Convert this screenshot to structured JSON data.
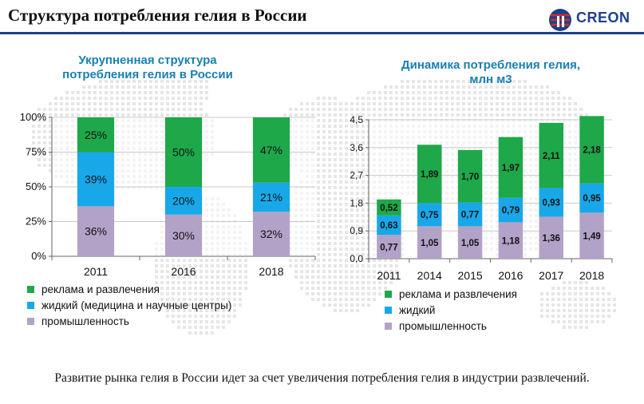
{
  "header": {
    "title": "Структура потребления гелия в России",
    "logo_text": "CREON"
  },
  "colors": {
    "green": "#1ea84a",
    "blue": "#18a8ea",
    "purple": "#b3a2c8",
    "title_blue": "#1a7fb0",
    "rule": "#1e3f8a"
  },
  "footer": {
    "text": "Развитие рынка гелия в России идет за счет увеличения потребления гелия в индустрии развлечений."
  },
  "left_chart": {
    "title_line1": "Укрупненная структура",
    "title_line2": "потребления гелия в России",
    "legend": [
      "реклама  и развлечения",
      "жидкий (медицина  и научные центры)",
      "промышленность"
    ]
  },
  "right_chart": {
    "title_line1": "Динамика потребления гелия,",
    "title_line2": "млн м3",
    "legend": [
      "реклама  и развлечения",
      "жидкий",
      "промышленность"
    ]
  },
  "chart_data": [
    {
      "type": "bar",
      "stacked": "percent",
      "title": "Укрупненная структура потребления гелия в России",
      "categories": [
        "2011",
        "2016",
        "2018"
      ],
      "series": [
        {
          "name": "промышленность",
          "color": "#b3a2c8",
          "values": [
            36,
            30,
            32
          ],
          "labels": [
            "36%",
            "30%",
            "32%"
          ]
        },
        {
          "name": "жидкий (медицина  и научные центры)",
          "color": "#18a8ea",
          "values": [
            39,
            20,
            21
          ],
          "labels": [
            "39%",
            "20%",
            "21%"
          ]
        },
        {
          "name": "реклама  и развлечения",
          "color": "#1ea84a",
          "values": [
            25,
            50,
            47
          ],
          "labels": [
            "25%",
            "50%",
            "47%"
          ]
        }
      ],
      "yticks": [
        "0%",
        "25%",
        "50%",
        "75%",
        "100%"
      ],
      "ylim": [
        0,
        100
      ],
      "legend_position": "bottom"
    },
    {
      "type": "bar",
      "stacked": "absolute",
      "title": "Динамика потребления гелия, млн м3",
      "categories": [
        "2011",
        "2014",
        "2015",
        "2016",
        "2017",
        "2018"
      ],
      "series": [
        {
          "name": "промышленность",
          "color": "#b3a2c8",
          "values": [
            0.77,
            1.05,
            1.05,
            1.18,
            1.36,
            1.49
          ],
          "labels": [
            "0,77",
            "1,05",
            "1,05",
            "1,18",
            "1,36",
            "1,49"
          ]
        },
        {
          "name": "жидкий",
          "color": "#18a8ea",
          "values": [
            0.63,
            0.75,
            0.77,
            0.79,
            0.93,
            0.95
          ],
          "labels": [
            "0,63",
            "0,75",
            "0,77",
            "0,79",
            "0,93",
            "0,95"
          ]
        },
        {
          "name": "реклама  и развлечения",
          "color": "#1ea84a",
          "values": [
            0.52,
            1.89,
            1.7,
            1.97,
            2.11,
            2.18
          ],
          "labels": [
            "0,52",
            "1,89",
            "1,70",
            "1,97",
            "2,11",
            "2,18"
          ]
        }
      ],
      "yticks": [
        "0,0",
        "0,9",
        "1,8",
        "2,7",
        "3,6",
        "4,5"
      ],
      "ylim": [
        0,
        4.5
      ],
      "legend_position": "bottom"
    }
  ]
}
